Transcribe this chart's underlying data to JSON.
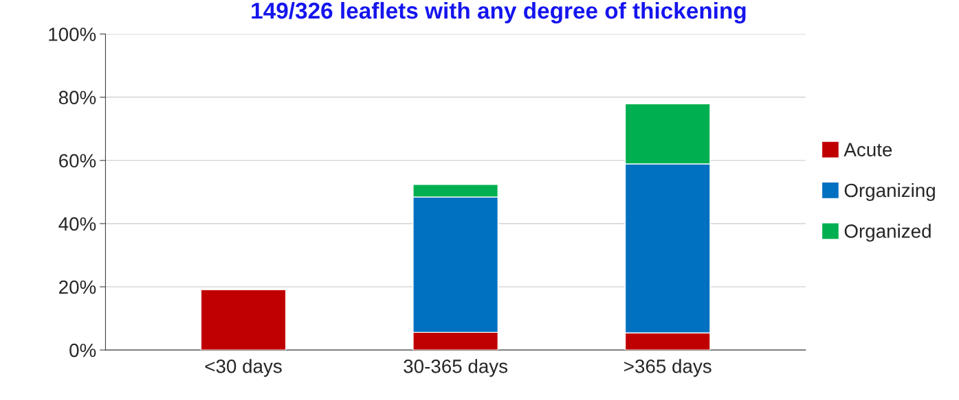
{
  "chart_data": {
    "type": "bar",
    "title": "149/326 leaflets with any degree of thickening",
    "categories": [
      "<30 days",
      "30-365 days",
      ">365 days"
    ],
    "stacked": true,
    "series": [
      {
        "name": "Acute",
        "color": "#c00000",
        "values": [
          19.2,
          5.6,
          5.4
        ]
      },
      {
        "name": "Organizing",
        "color": "#0070c0",
        "values": [
          null,
          42.8,
          53.5
        ]
      },
      {
        "name": "Organized",
        "color": "#00b050",
        "values": [
          null,
          4.0,
          19.0
        ]
      }
    ],
    "ylim": [
      0,
      100
    ],
    "yticks": [
      {
        "value": 0,
        "label": "0%"
      },
      {
        "value": 20,
        "label": "20%"
      },
      {
        "value": 40,
        "label": "40%"
      },
      {
        "value": 60,
        "label": "60%"
      },
      {
        "value": 80,
        "label": "80%"
      },
      {
        "value": 100,
        "label": "100%"
      }
    ],
    "grid": "y",
    "legend": "right"
  }
}
